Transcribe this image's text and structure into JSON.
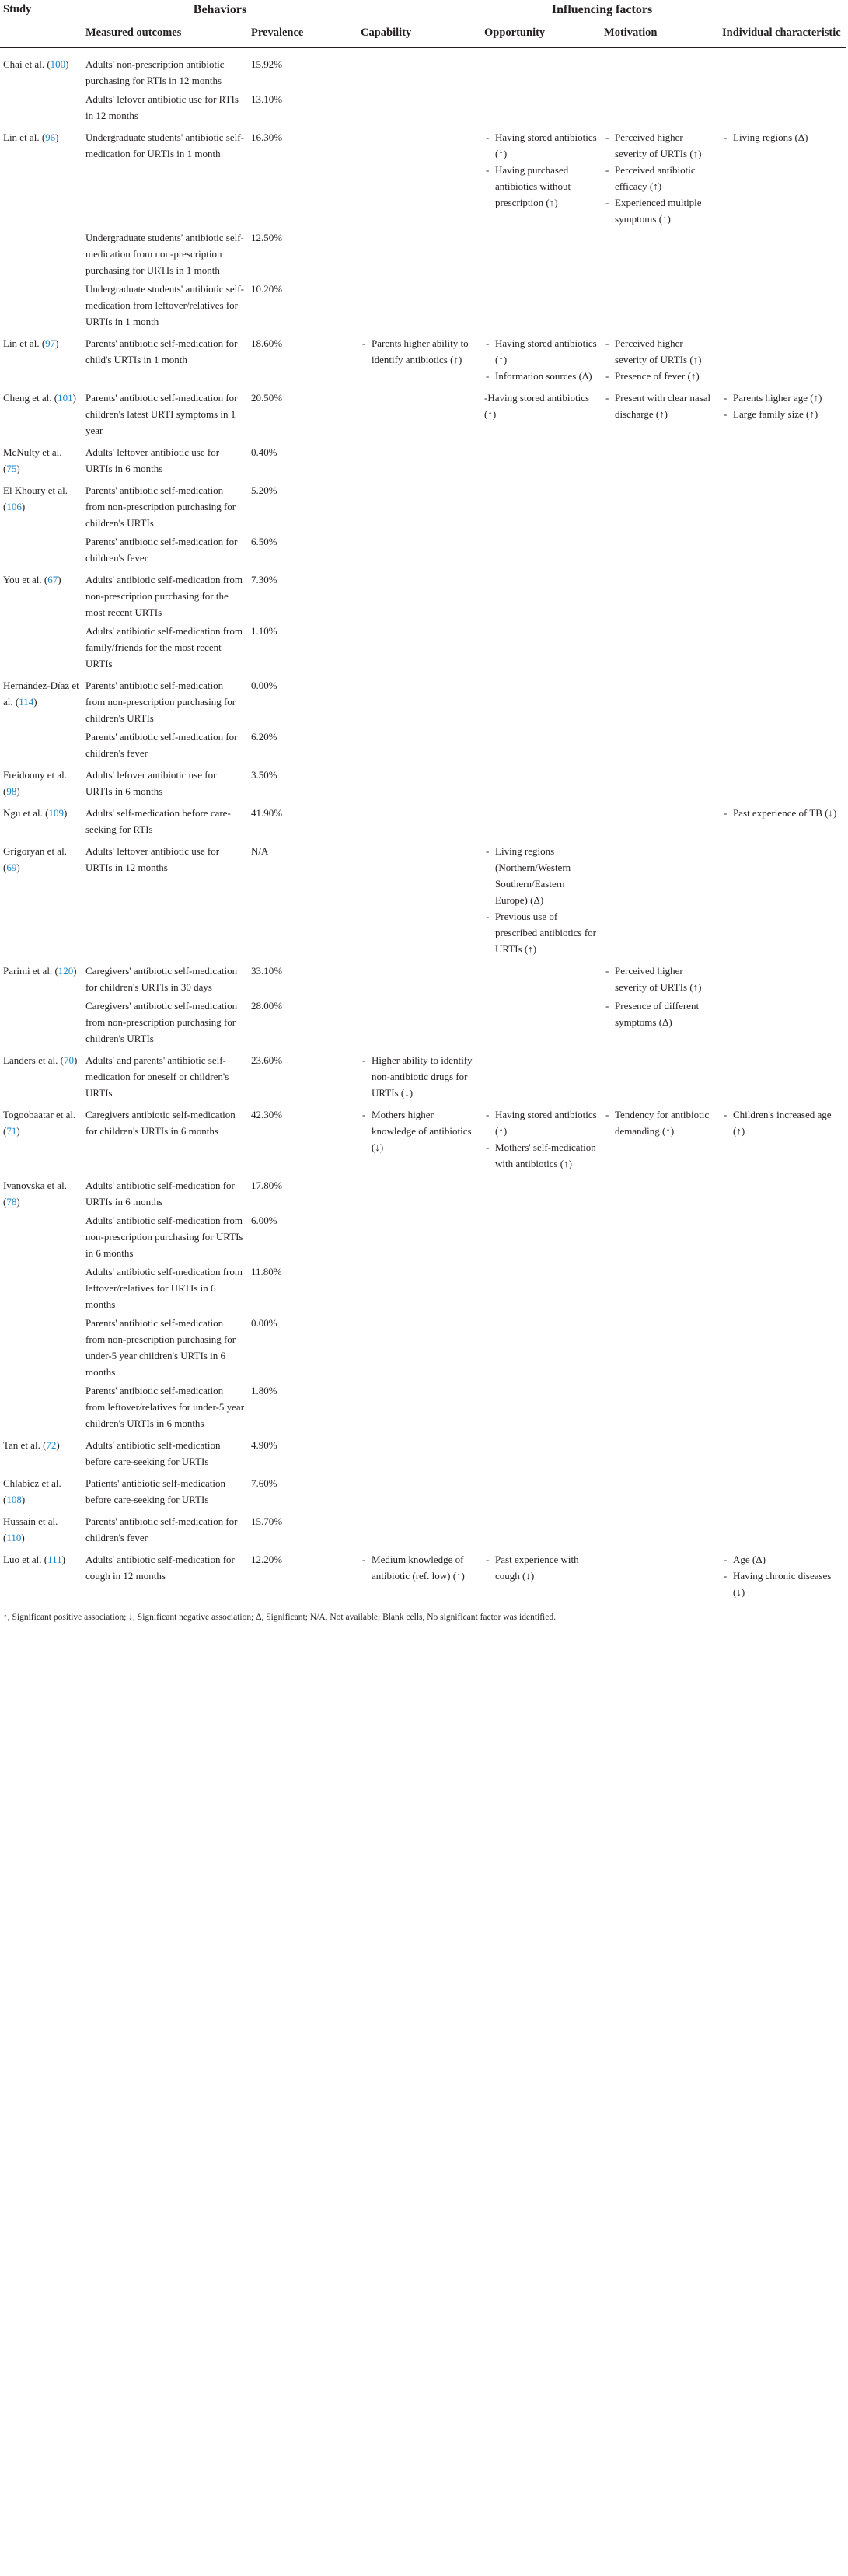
{
  "headers": {
    "study": "Study",
    "behaviors": "Behaviors",
    "influencing": "Influencing factors",
    "measured": "Measured outcomes",
    "prevalence": "Prevalence",
    "capability": "Capability",
    "opportunity": "Opportunity",
    "motivation": "Motivation",
    "individual": "Individual characteristic"
  },
  "rows": [
    {
      "study": "Chai et al.",
      "ref": "100",
      "outcome": "Adults' non-prescription antibiotic purchasing for RTIs in 12 months",
      "prev": "15.92%",
      "cap": [],
      "opp": [],
      "mot": [],
      "ind": []
    },
    {
      "study": "",
      "ref": "",
      "outcome": "Adults' lefover antibiotic use for RTIs in 12 months",
      "prev": "13.10%",
      "cap": [],
      "opp": [],
      "mot": [],
      "ind": []
    },
    {
      "study": "Lin et al.",
      "ref": "96",
      "outcome": "Undergraduate students' antibiotic self-medication for URTIs in 1 month",
      "prev": "16.30%",
      "cap": [],
      "opp": [
        "Having stored antibiotics (↑)",
        "Having purchased antibiotics without prescription (↑)"
      ],
      "mot": [
        "Perceived higher severity of URTIs (↑)",
        "Perceived antibiotic efficacy (↑)",
        "Experienced multiple symptoms (↑)"
      ],
      "ind": [
        "Living regions (Δ)"
      ]
    },
    {
      "study": "",
      "ref": "",
      "outcome": "Undergraduate students' antibiotic self-medication from non-prescription purchasing for URTIs in 1 month",
      "prev": "12.50%",
      "cap": [],
      "opp": [],
      "mot": [],
      "ind": []
    },
    {
      "study": "",
      "ref": "",
      "outcome": "Undergraduate students' antibiotic self-medication from leftover/relatives for URTIs in 1 month",
      "prev": "10.20%",
      "cap": [],
      "opp": [],
      "mot": [],
      "ind": []
    },
    {
      "study": "Lin et al.",
      "ref": "97",
      "outcome": "Parents' antibiotic self-medication for child's URTIs in 1 month",
      "prev": "18.60%",
      "cap": [
        "Parents higher ability to identify antibiotics (↑)"
      ],
      "opp": [
        "Having stored antibiotics (↑)",
        "Information sources (Δ)"
      ],
      "mot": [
        "Perceived higher severity of URTIs (↑)",
        "Presence of fever (↑)"
      ],
      "ind": []
    },
    {
      "study": "Cheng et al.",
      "ref": "101",
      "outcome": "Parents' antibiotic self-medication for children's latest URTI symptoms in 1 year",
      "prev": "20.50%",
      "cap": [],
      "opp": [
        "-Having stored antibiotics (↑)"
      ],
      "mot": [
        "Present with clear nasal discharge (↑)"
      ],
      "ind": [
        "Parents higher age (↑)",
        "Large family size (↑)"
      ]
    },
    {
      "study": "McNulty et al.",
      "ref": "75",
      "outcome": "Adults' leftover antibiotic use for URTIs in 6 months",
      "prev": "0.40%",
      "cap": [],
      "opp": [],
      "mot": [],
      "ind": []
    },
    {
      "study": "El Khoury et al.",
      "ref": "106",
      "outcome": "Parents' antibiotic self-medication from non-prescription purchasing for children's URTIs",
      "prev": "5.20%",
      "cap": [],
      "opp": [],
      "mot": [],
      "ind": []
    },
    {
      "study": "",
      "ref": "",
      "outcome": "Parents' antibiotic self-medication for children's fever",
      "prev": "6.50%",
      "cap": [],
      "opp": [],
      "mot": [],
      "ind": []
    },
    {
      "study": "You et al.",
      "ref": "67",
      "outcome": "Adults' antibiotic self-medication from non-prescription purchasing for the most recent URTIs",
      "prev": "7.30%",
      "cap": [],
      "opp": [],
      "mot": [],
      "ind": []
    },
    {
      "study": "",
      "ref": "",
      "outcome": "Adults' antibiotic self-medication from family/friends for the most recent URTIs",
      "prev": "1.10%",
      "cap": [],
      "opp": [],
      "mot": [],
      "ind": []
    },
    {
      "study": "Hernández-Díaz et al.",
      "ref": "114",
      "outcome": "Parents' antibiotic self-medication from non-prescription purchasing for children's URTIs",
      "prev": "0.00%",
      "cap": [],
      "opp": [],
      "mot": [],
      "ind": []
    },
    {
      "study": "",
      "ref": "",
      "outcome": "Parents' antibiotic self-medication for children's fever",
      "prev": "6.20%",
      "cap": [],
      "opp": [],
      "mot": [],
      "ind": []
    },
    {
      "study": "Freidoony et al.",
      "ref": "98",
      "outcome": "Adults' lefover antibiotic use for URTIs in 6 months",
      "prev": "3.50%",
      "cap": [],
      "opp": [],
      "mot": [],
      "ind": []
    },
    {
      "study": "Ngu et al.",
      "ref": "109",
      "outcome": "Adults' self-medication before care-seeking for RTIs",
      "prev": "41.90%",
      "cap": [],
      "opp": [],
      "mot": [],
      "ind": [
        "Past experience of TB (↓)"
      ]
    },
    {
      "study": "Grigoryan et al.",
      "ref": "69",
      "outcome": "Adults' leftover antibiotic use for URTIs in 12 months",
      "prev": "N/A",
      "cap": [],
      "opp": [
        "Living regions (Northern/Western Southern/Eastern Europe) (Δ)",
        "Previous use of prescribed antibiotics for URTIs (↑)"
      ],
      "mot": [],
      "ind": []
    },
    {
      "study": "Parimi et al.",
      "ref": "120",
      "outcome": "Caregivers' antibiotic self-medication for children's URTIs in 30 days",
      "prev": "33.10%",
      "cap": [],
      "opp": [],
      "mot": [
        "Perceived higher severity of URTIs (↑)"
      ],
      "ind": []
    },
    {
      "study": "",
      "ref": "",
      "outcome": "Caregivers' antibiotic self-medication from non-prescription purchasing for children's URTIs",
      "prev": "28.00%",
      "cap": [],
      "opp": [],
      "mot": [
        "Presence of different symptoms (Δ)"
      ],
      "ind": []
    },
    {
      "study": "Landers et al.",
      "ref": "70",
      "outcome": "Adults' and parents' antibiotic self-medication for oneself or children's URTIs",
      "prev": "23.60%",
      "cap": [
        "Higher ability to identify non-antibiotic drugs for URTIs (↓)"
      ],
      "opp": [],
      "mot": [],
      "ind": []
    },
    {
      "study": "Togoobaatar et al.",
      "ref": "71",
      "outcome": "Caregivers antibiotic self-medication for children's URTIs in 6 months",
      "prev": "42.30%",
      "cap": [
        "Mothers higher knowledge of antibiotics (↓)"
      ],
      "opp": [
        "Having stored antibiotics (↑)",
        "Mothers' self-medication with antibiotics (↑)"
      ],
      "mot": [
        "Tendency for antibiotic demanding (↑)"
      ],
      "ind": [
        "Children's increased age (↑)"
      ]
    },
    {
      "study": "Ivanovska et al.",
      "ref": "78",
      "outcome": "Adults' antibiotic self-medication for URTIs in 6 months",
      "prev": "17.80%",
      "cap": [],
      "opp": [],
      "mot": [],
      "ind": []
    },
    {
      "study": "",
      "ref": "",
      "outcome": "Adults' antibiotic self-medication from non-prescription purchasing for URTIs in 6 months",
      "prev": "6.00%",
      "cap": [],
      "opp": [],
      "mot": [],
      "ind": []
    },
    {
      "study": "",
      "ref": "",
      "outcome": "Adults' antibiotic self-medication from leftover/relatives for URTIs in 6 months",
      "prev": "11.80%",
      "cap": [],
      "opp": [],
      "mot": [],
      "ind": []
    },
    {
      "study": "",
      "ref": "",
      "outcome": "Parents' antibiotic self-medication from non-prescription purchasing for under-5 year children's URTIs in 6 months",
      "prev": "0.00%",
      "cap": [],
      "opp": [],
      "mot": [],
      "ind": []
    },
    {
      "study": "",
      "ref": "",
      "outcome": "Parents' antibiotic self-medication from leftover/relatives for under-5 year children's URTIs in 6 months",
      "prev": "1.80%",
      "cap": [],
      "opp": [],
      "mot": [],
      "ind": []
    },
    {
      "study": "Tan et al.",
      "ref": "72",
      "outcome": "Adults' antibiotic self-medication before care-seeking for URTIs",
      "prev": "4.90%",
      "cap": [],
      "opp": [],
      "mot": [],
      "ind": []
    },
    {
      "study": "Chlabicz et al.",
      "ref": "108",
      "outcome": "Patients' antibiotic self-medication before care-seeking for URTIs",
      "prev": "7.60%",
      "cap": [],
      "opp": [],
      "mot": [],
      "ind": []
    },
    {
      "study": "Hussain et al.",
      "ref": "110",
      "outcome": "Parents' antibiotic self-medication for children's fever",
      "prev": "15.70%",
      "cap": [],
      "opp": [],
      "mot": [],
      "ind": []
    },
    {
      "study": "Luo et al.",
      "ref": "111",
      "outcome": "Adults' antibiotic self-medication for cough in 12 months",
      "prev": "12.20%",
      "cap": [
        "Medium knowledge of antibiotic (ref. low) (↑)"
      ],
      "opp": [
        "Past experience with cough (↓)"
      ],
      "mot": [],
      "ind": [
        "Age (Δ)",
        "Having chronic diseases (↓)"
      ]
    }
  ],
  "footnote": "↑, Significant positive association; ↓, Significant negative association; Δ, Significant; N/A, Not available; Blank cells, No significant factor was identified."
}
